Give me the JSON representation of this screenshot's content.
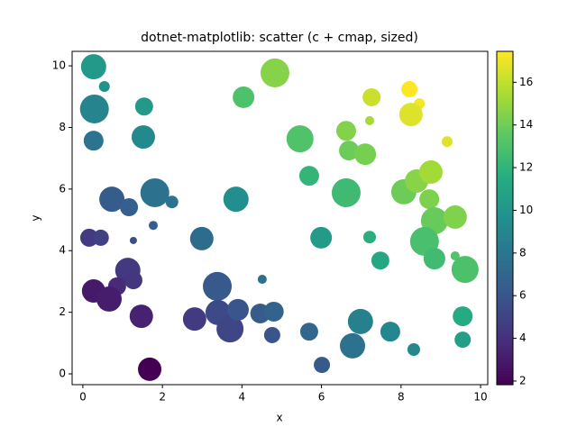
{
  "chart_data": {
    "type": "scatter",
    "title": "dotnet-matplotlib: scatter (c + cmap, sized)",
    "x_label": "x",
    "y_label": "y",
    "x": [
      0.27,
      0.54,
      0.29,
      0.27,
      1.54,
      1.52,
      0.73,
      1.16,
      1.81,
      2.24,
      1.77,
      1.27,
      0.16,
      0.45,
      1.13,
      1.27,
      0.86,
      0.27,
      0.66,
      1.47,
      1.68,
      2.81,
      2.99,
      3.38,
      3.4,
      3.7,
      3.9,
      3.85,
      4.04,
      4.83,
      4.51,
      4.46,
      4.8,
      4.76,
      5.46,
      5.69,
      5.99,
      5.69,
      6.01,
      6.62,
      6.69,
      6.62,
      7.1,
      7.26,
      7.21,
      7.21,
      7.48,
      6.98,
      6.78,
      7.73,
      8.21,
      8.46,
      8.25,
      8.07,
      8.39,
      8.75,
      8.71,
      8.84,
      8.59,
      8.84,
      8.32,
      9.16,
      9.36,
      9.36,
      9.61,
      9.55,
      9.55
    ],
    "y": [
      9.97,
      9.33,
      8.6,
      7.57,
      8.68,
      7.69,
      5.67,
      5.41,
      5.88,
      5.58,
      4.82,
      4.33,
      4.42,
      4.42,
      3.36,
      3.04,
      2.84,
      2.69,
      2.43,
      1.87,
      0.15,
      1.78,
      4.39,
      2.84,
      1.99,
      1.46,
      2.08,
      5.67,
      8.98,
      9.77,
      3.07,
      1.96,
      2.02,
      1.26,
      7.63,
      6.43,
      4.42,
      1.37,
      0.29,
      7.89,
      7.25,
      5.88,
      7.13,
      8.98,
      8.22,
      4.44,
      3.68,
      1.7,
      0.91,
      1.37,
      9.24,
      8.77,
      8.42,
      5.91,
      6.26,
      6.55,
      5.67,
      4.97,
      4.3,
      3.74,
      0.79,
      7.54,
      5.09,
      3.83,
      3.39,
      1.87,
      1.11
    ],
    "sizes": [
      406,
      75,
      531,
      251,
      207,
      350,
      406,
      207,
      531,
      102,
      52,
      33,
      207,
      168,
      406,
      207,
      207,
      350,
      406,
      350,
      350,
      350,
      350,
      531,
      406,
      467,
      299,
      406,
      299,
      531,
      52,
      251,
      251,
      168,
      467,
      251,
      299,
      207,
      168,
      251,
      251,
      531,
      299,
      207,
      52,
      102,
      207,
      406,
      406,
      251,
      168,
      75,
      350,
      406,
      350,
      350,
      251,
      467,
      531,
      299,
      102,
      75,
      350,
      52,
      467,
      251,
      168
    ],
    "c": [
      10.24,
      9.87,
      8.89,
      7.84,
      10.22,
      9.21,
      6.4,
      6.57,
      7.69,
      7.82,
      6.59,
      5.6,
      4.58,
      4.87,
      4.49,
      4.31,
      3.7,
      2.96,
      3.09,
      3.34,
      1.83,
      4.59,
      7.38,
      6.22,
      5.39,
      5.16,
      5.98,
      9.52,
      13.02,
      14.6,
      7.58,
      6.42,
      6.82,
      6.02,
      13.09,
      12.12,
      10.41,
      7.06,
      6.3,
      14.51,
      13.94,
      12.5,
      14.23,
      16.24,
      15.43,
      11.65,
      11.16,
      8.68,
      7.69,
      9.1,
      17.45,
      17.23,
      16.67,
      13.98,
      14.65,
      15.3,
      14.38,
      13.81,
      12.89,
      12.58,
      9.11,
      16.7,
      14.45,
      13.19,
      13.0,
      11.42,
      10.66
    ],
    "colormap": "viridis",
    "clim": [
      1.83,
      17.45
    ],
    "cticks": [
      2,
      4,
      6,
      8,
      10,
      12,
      14,
      16
    ],
    "xlim": [
      -0.27,
      10.18
    ],
    "ylim": [
      -0.35,
      10.47
    ],
    "xticks": [
      0,
      2,
      4,
      6,
      8,
      10
    ],
    "yticks": [
      0,
      2,
      4,
      6,
      8,
      10
    ]
  }
}
